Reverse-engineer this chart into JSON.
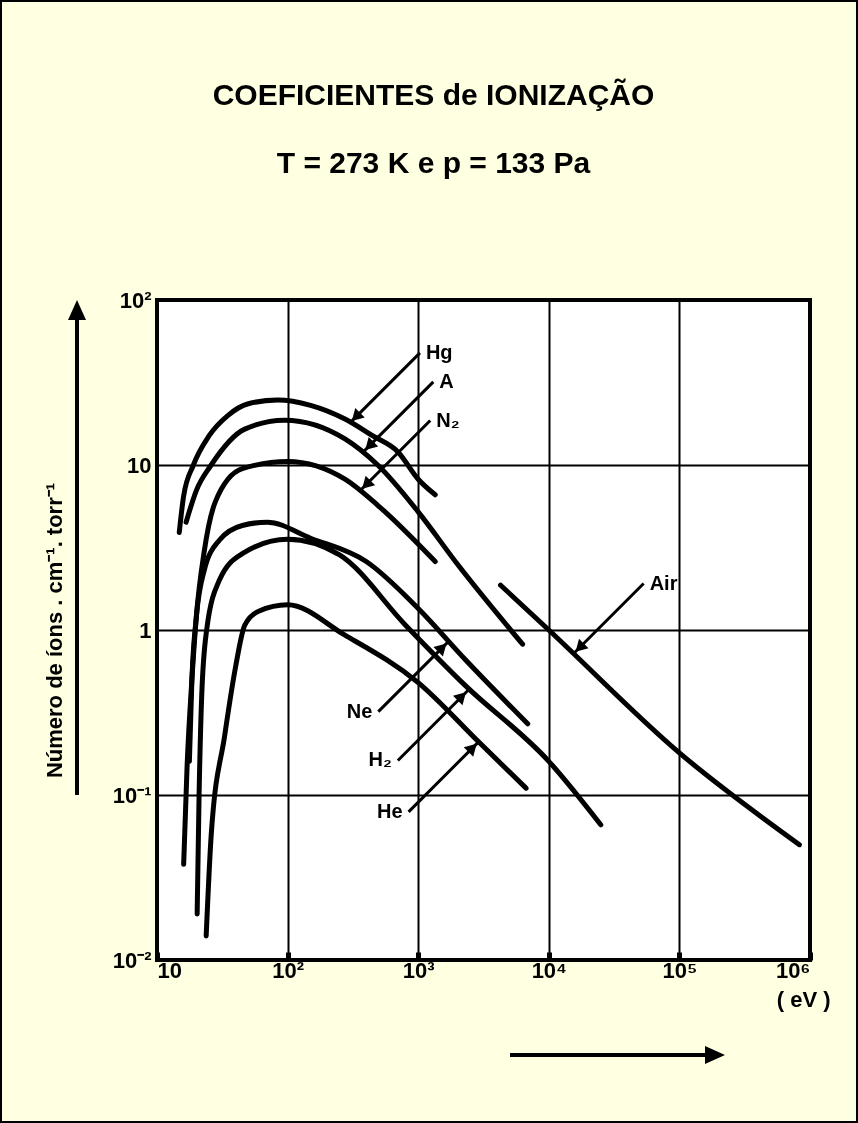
{
  "chart_data": {
    "type": "line",
    "title": "COEFICIENTES  de  IONIZAÇÃO",
    "subtitle": "T = 273 K   e  p = 133 Pa",
    "xlabel": "( eV )",
    "ylabel": "Número de íons  . cm⁻¹. torr⁻¹",
    "log": "xy",
    "grid": true,
    "xlim": [
      10,
      1000000
    ],
    "xticks": [
      10,
      {
        "value": 100,
        "label": "10²"
      },
      {
        "value": 1000,
        "label": "10³"
      },
      {
        "value": 10000,
        "label": "10⁴"
      },
      {
        "value": 100000,
        "label": "10⁵"
      },
      {
        "value": 1000000,
        "label": "10⁶"
      }
    ],
    "ylim": [
      0.01,
      100
    ],
    "yticks": [
      {
        "value": 0.01,
        "label": "10⁻²"
      },
      {
        "value": 0.1,
        "label": "10⁻¹"
      },
      1,
      10,
      {
        "value": 100,
        "label": "10²"
      }
    ],
    "series": [
      {
        "color": "#000000",
        "x": [
          14.8,
          16,
          19,
          25,
          35,
          50,
          84,
          150,
          275,
          450,
          700,
          1000,
          1350
        ],
        "values": [
          3.9,
          6.5,
          10,
          15,
          20,
          23.5,
          24.8,
          23,
          19,
          15,
          12,
          8.2,
          6.6
        ]
      },
      {
        "color": "#000000",
        "x": [
          16.7,
          20,
          26,
          47,
          95,
          275,
          490,
          1000,
          2000,
          6300
        ],
        "values": [
          4.5,
          7,
          10,
          16.5,
          18.7,
          14.4,
          10,
          5.2,
          2.5,
          0.82
        ]
      },
      {
        "color": "#000000",
        "x": [
          16,
          17,
          18.5,
          20,
          23,
          28,
          45,
          100,
          275,
          490,
          1350
        ],
        "values": [
          0.038,
          0.15,
          0.5,
          1.2,
          3,
          6,
          9.5,
          10.5,
          8.2,
          5.7,
          2.6
        ]
      },
      {
        "color": "#000000",
        "x": [
          17.7,
          18.5,
          20,
          23,
          30,
          45,
          70,
          150,
          400,
          1000,
          2300,
          6900
        ],
        "values": [
          0.16,
          0.5,
          1.2,
          2.3,
          3.5,
          4.3,
          4.5,
          3.6,
          2.6,
          1.35,
          0.66,
          0.27
        ]
      },
      {
        "color": "#000000",
        "x": [
          20.3,
          21,
          22,
          24,
          30,
          45,
          100,
          250,
          800,
          2300,
          10000,
          25000
        ],
        "values": [
          0.019,
          0.1,
          0.4,
          1,
          2,
          2.9,
          3.55,
          2.85,
          1.07,
          0.46,
          0.16,
          0.066
        ]
      },
      {
        "color": "#000000",
        "x": [
          23.8,
          26,
          33,
          40,
          47,
          60,
          100,
          275,
          1000,
          2900,
          6700
        ],
        "values": [
          0.014,
          0.057,
          0.23,
          0.6,
          1.07,
          1.3,
          1.42,
          0.93,
          0.48,
          0.21,
          0.11
        ]
      },
      {
        "color": "#000000",
        "x": [
          4270,
          10000,
          100000,
          830000
        ],
        "values": [
          1.87,
          1,
          0.18,
          0.05
        ]
      }
    ],
    "annotations": [
      {
        "text": "Hg",
        "x": 300,
        "y": 18
      },
      {
        "text": "A",
        "x": 380,
        "y": 12
      },
      {
        "text": "N₂",
        "x": 360,
        "y": 7
      },
      {
        "text": "Ne",
        "x": 1700,
        "y": 0.85
      },
      {
        "text": "H₂",
        "x": 2400,
        "y": 0.43
      },
      {
        "text": "He",
        "x": 2900,
        "y": 0.21
      },
      {
        "text": "Air",
        "x": 15500,
        "y": 0.72
      }
    ]
  }
}
